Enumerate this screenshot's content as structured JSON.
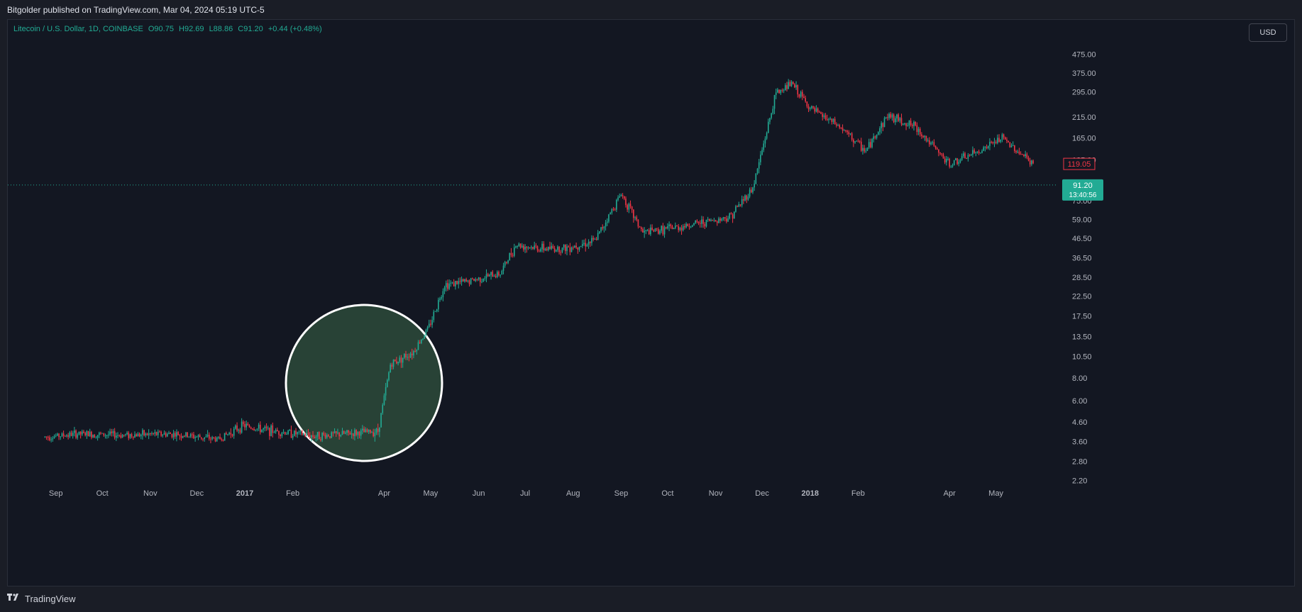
{
  "header": {
    "published": "Bitgolder published on TradingView.com, Mar 04, 2024 05:19 UTC-5"
  },
  "legend": {
    "symbol": "Litecoin / U.S. Dollar, 1D, COINBASE",
    "open": "O90.75",
    "high": "H92.69",
    "low": "L88.86",
    "close": "C91.20",
    "change": "+0.44 (+0.48%)"
  },
  "currency_button": "USD",
  "footer": {
    "brand": "TradingView",
    "logo_icon": "tradingview-logo-icon"
  },
  "colors": {
    "up": "#22ab94",
    "down": "#f23645",
    "background": "#131722",
    "highlight": "#2d4a3a"
  },
  "chart_data": {
    "type": "candlestick",
    "y_scale": "log",
    "y_tick_labels": [
      "475.00",
      "375.00",
      "295.00",
      "215.00",
      "165.00",
      "125.00",
      "95.00",
      "75.00",
      "59.00",
      "46.50",
      "36.50",
      "28.50",
      "22.50",
      "17.50",
      "13.50",
      "10.50",
      "8.00",
      "6.00",
      "4.60",
      "3.60",
      "2.80",
      "2.20"
    ],
    "x_tick_labels": [
      "Sep",
      "Oct",
      "Nov",
      "Dec",
      "2017",
      "Feb",
      "Apr",
      "May",
      "Jun",
      "Jul",
      "Aug",
      "Sep",
      "Oct",
      "Nov",
      "Dec",
      "2018",
      "Feb",
      "Apr",
      "May"
    ],
    "ylim": [
      2.0,
      560
    ],
    "price_labels": [
      {
        "price": 119.05,
        "text": "119.05",
        "style": "red-outline"
      },
      {
        "price": 91.2,
        "text": "91.20",
        "subtext": "13:40:56",
        "style": "green-fill"
      }
    ],
    "current_price_line": 91.2,
    "highlight_circle": {
      "label": "",
      "from": "Mar 2017",
      "to": "Apr 2017"
    },
    "price_path": [
      {
        "date": "2016-08-25",
        "price": 3.8
      },
      {
        "date": "2016-09-15",
        "price": 3.95
      },
      {
        "date": "2016-10-15",
        "price": 3.9
      },
      {
        "date": "2016-11-15",
        "price": 3.95
      },
      {
        "date": "2016-12-15",
        "price": 3.7
      },
      {
        "date": "2016-12-31",
        "price": 4.4
      },
      {
        "date": "2017-01-10",
        "price": 4.2
      },
      {
        "date": "2017-02-15",
        "price": 3.85
      },
      {
        "date": "2017-03-15",
        "price": 4.0
      },
      {
        "date": "2017-03-28",
        "price": 4.1
      },
      {
        "date": "2017-04-05",
        "price": 9.5
      },
      {
        "date": "2017-04-20",
        "price": 11.2
      },
      {
        "date": "2017-04-30",
        "price": 15.3
      },
      {
        "date": "2017-05-10",
        "price": 26.0
      },
      {
        "date": "2017-05-25",
        "price": 27.0
      },
      {
        "date": "2017-06-15",
        "price": 30.0
      },
      {
        "date": "2017-06-25",
        "price": 43.0
      },
      {
        "date": "2017-07-10",
        "price": 41.0
      },
      {
        "date": "2017-07-25",
        "price": 41.0
      },
      {
        "date": "2017-08-15",
        "price": 45.0
      },
      {
        "date": "2017-09-01",
        "price": 82.0
      },
      {
        "date": "2017-09-15",
        "price": 50.0
      },
      {
        "date": "2017-10-10",
        "price": 54.0
      },
      {
        "date": "2017-11-10",
        "price": 61.0
      },
      {
        "date": "2017-11-25",
        "price": 88.0
      },
      {
        "date": "2017-12-10",
        "price": 290.0
      },
      {
        "date": "2017-12-20",
        "price": 330.0
      },
      {
        "date": "2018-01-01",
        "price": 240.0
      },
      {
        "date": "2018-01-20",
        "price": 190.0
      },
      {
        "date": "2018-02-06",
        "price": 140.0
      },
      {
        "date": "2018-02-20",
        "price": 220.0
      },
      {
        "date": "2018-03-10",
        "price": 190.0
      },
      {
        "date": "2018-04-01",
        "price": 118.0
      },
      {
        "date": "2018-04-20",
        "price": 140.0
      },
      {
        "date": "2018-05-05",
        "price": 165.0
      },
      {
        "date": "2018-05-25",
        "price": 119.0
      }
    ]
  }
}
